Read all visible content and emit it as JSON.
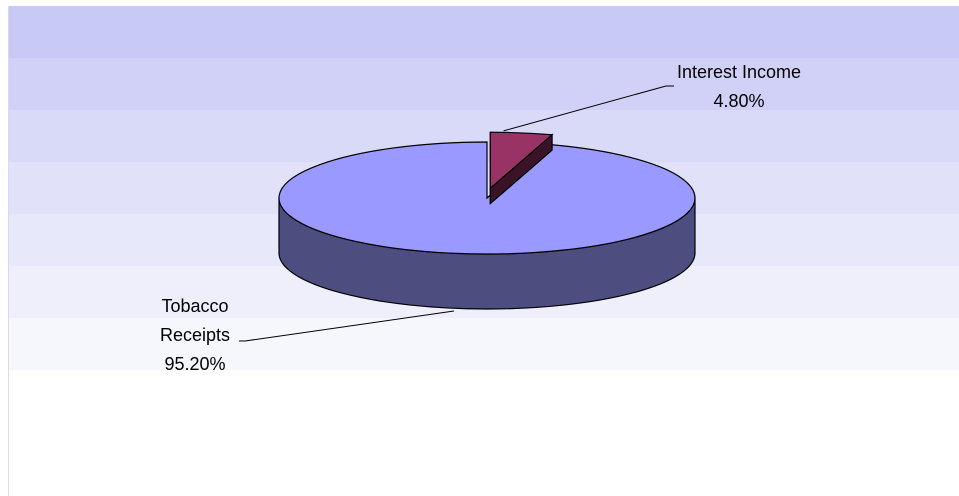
{
  "chart_data": {
    "type": "pie",
    "style": "3d",
    "title": "",
    "slices": [
      {
        "label_lines": [
          "Interest Income"
        ],
        "value_label": "4.80%",
        "value": 4.8,
        "color": "#993366",
        "exploded": true
      },
      {
        "label_lines": [
          "Tobacco",
          "Receipts"
        ],
        "value_label": "95.20%",
        "value": 95.2,
        "color": "#9999FF",
        "exploded": false
      }
    ],
    "background_bands": [
      "#C9C9F5",
      "#D1D1F7",
      "#D9D9F8",
      "#E1E1FA",
      "#E8E8FB",
      "#EFEFFC",
      "#F6F6FD"
    ],
    "legend": "none"
  }
}
